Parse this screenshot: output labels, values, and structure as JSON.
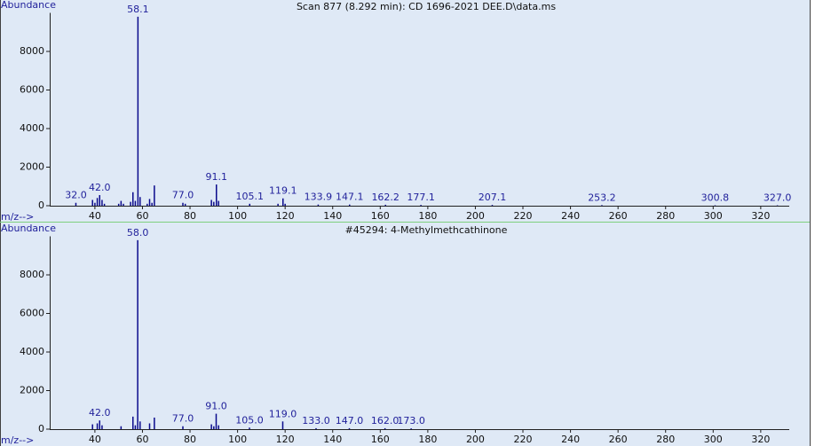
{
  "chart_data": [
    {
      "type": "bar",
      "title": "Scan 877 (8.292 min): CD 1696-2021 DEE.D\\data.ms",
      "y_label": "Abundance",
      "x_label": "m/z-->",
      "color": "#0a0a8c",
      "x": [
        32.0,
        39,
        40,
        41,
        42.0,
        43,
        44,
        50,
        51,
        52,
        55,
        56,
        57,
        58.1,
        59,
        62,
        63,
        64,
        65,
        77.0,
        78,
        89,
        90,
        91.1,
        92,
        105.1,
        117,
        119.1,
        120,
        133.9,
        147.1,
        162.2,
        177.1,
        207.1,
        253.2,
        300.8,
        327.0
      ],
      "x_labels": [
        "32.0",
        null,
        null,
        null,
        "42.0",
        null,
        null,
        null,
        null,
        null,
        null,
        null,
        null,
        "58.1",
        null,
        null,
        null,
        null,
        null,
        "77.0",
        null,
        null,
        null,
        "91.1",
        null,
        "105.1",
        null,
        "119.1",
        null,
        "133.9",
        "147.1",
        "162.2",
        "177.1",
        "207.1",
        "253.2",
        "300.8",
        "327.0"
      ],
      "values": [
        150,
        300,
        150,
        400,
        550,
        300,
        100,
        100,
        250,
        100,
        200,
        700,
        250,
        9800,
        450,
        100,
        350,
        150,
        1050,
        150,
        100,
        300,
        200,
        1100,
        250,
        100,
        100,
        380,
        100,
        60,
        60,
        50,
        40,
        40,
        30,
        20,
        20
      ],
      "xlim": [
        21,
        332
      ],
      "xticks": [
        40,
        60,
        80,
        100,
        120,
        140,
        160,
        180,
        200,
        220,
        240,
        260,
        280,
        300,
        320
      ],
      "ylim": [
        0,
        10000
      ],
      "yticks": [
        0,
        2000,
        4000,
        6000,
        8000
      ]
    },
    {
      "type": "bar",
      "title": "#45294: 4-Methylmethcathinone",
      "y_label": "Abundance",
      "x_label": "m/z-->",
      "color": "#0a0a8c",
      "x": [
        39,
        41,
        42.0,
        43,
        51,
        56,
        57,
        58.0,
        59,
        63,
        65,
        77.0,
        89,
        90,
        91.0,
        92,
        105.0,
        119.0,
        133.0,
        147.0,
        162.0,
        173.0
      ],
      "x_labels": [
        null,
        null,
        "42.0",
        null,
        null,
        null,
        null,
        "58.0",
        null,
        null,
        null,
        "77.0",
        null,
        null,
        "91.0",
        null,
        "105.0",
        "119.0",
        "133.0",
        "147.0",
        "162.0",
        "173.0"
      ],
      "values": [
        250,
        300,
        450,
        200,
        150,
        650,
        200,
        9800,
        400,
        300,
        600,
        150,
        250,
        150,
        800,
        200,
        80,
        400,
        50,
        50,
        50,
        40
      ],
      "xlim": [
        21,
        332
      ],
      "xticks": [
        40,
        60,
        80,
        100,
        120,
        140,
        160,
        180,
        200,
        220,
        240,
        260,
        280,
        300,
        320
      ],
      "ylim": [
        0,
        10000
      ],
      "yticks": [
        0,
        2000,
        4000,
        6000,
        8000
      ]
    }
  ]
}
